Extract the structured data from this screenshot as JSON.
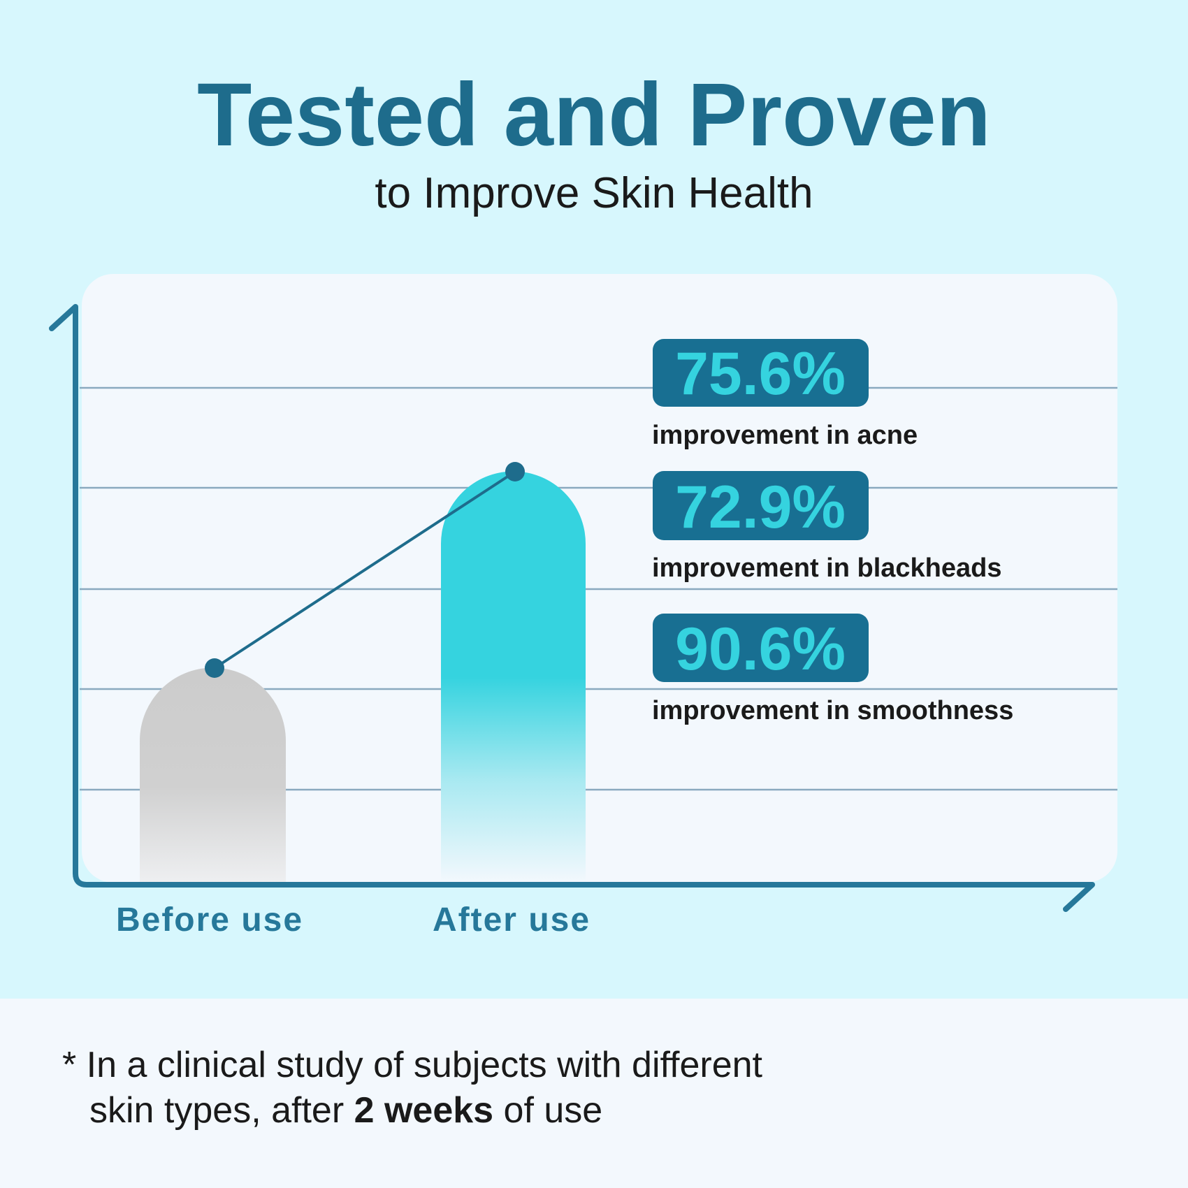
{
  "header": {
    "title": "Tested and Proven",
    "subtitle": "to Improve Skin Health"
  },
  "chart": {
    "x_labels": [
      "Before use",
      "After use"
    ]
  },
  "stats": [
    {
      "value": "75.6%",
      "label": "improvement in acne"
    },
    {
      "value": "72.9%",
      "label": "improvement in blackheads"
    },
    {
      "value": "90.6%",
      "label": "improvement in smoothness"
    }
  ],
  "footnote": {
    "line1": "* In a clinical study of subjects with different",
    "line2": [
      "skin types, after ",
      "2 weeks",
      " of use"
    ]
  }
}
